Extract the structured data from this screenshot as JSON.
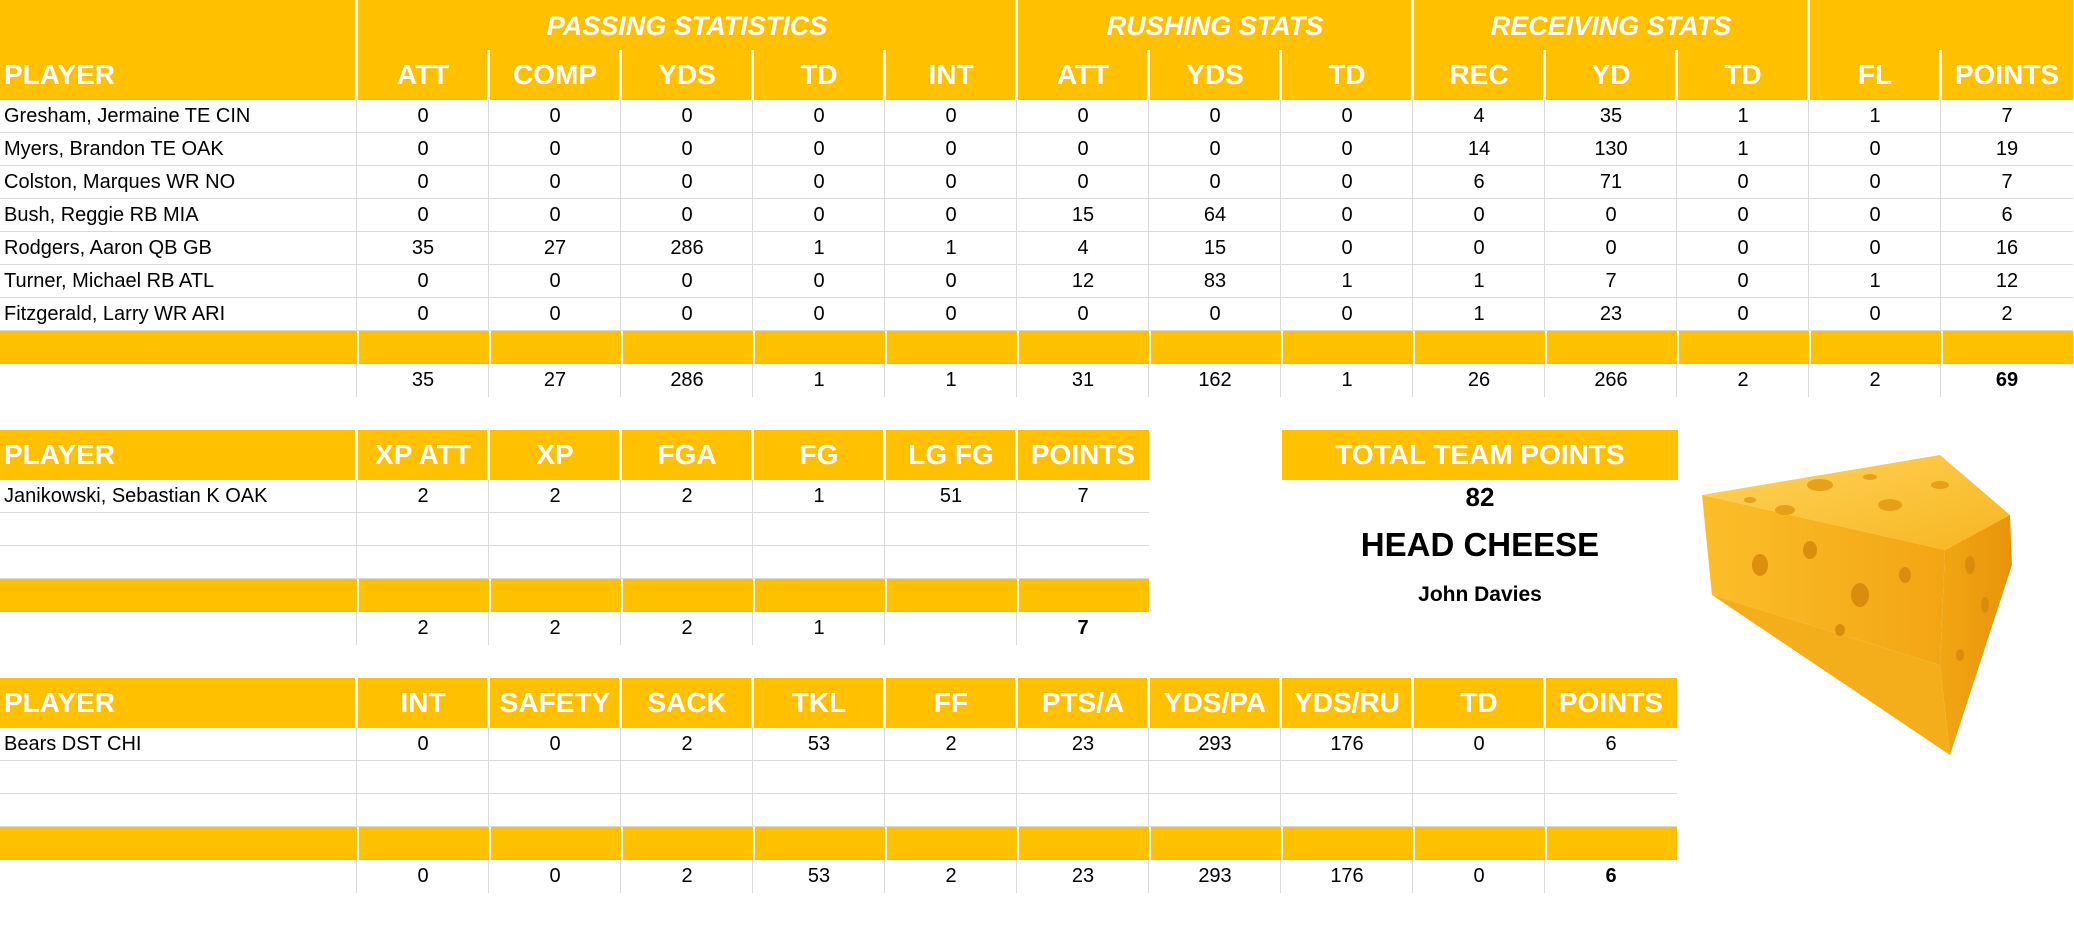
{
  "offense": {
    "groups": [
      "PASSING STATISTICS",
      "RUSHING STATS",
      "RECEIVING STATS"
    ],
    "columns": [
      "PLAYER",
      "ATT",
      "COMP",
      "YDS",
      "TD",
      "INT",
      "ATT",
      "YDS",
      "TD",
      "REC",
      "YD",
      "TD",
      "FL",
      "POINTS"
    ],
    "rows": [
      [
        "Gresham, Jermaine TE CIN",
        "0",
        "0",
        "0",
        "0",
        "0",
        "0",
        "0",
        "0",
        "4",
        "35",
        "1",
        "1",
        "7"
      ],
      [
        "Myers, Brandon TE OAK",
        "0",
        "0",
        "0",
        "0",
        "0",
        "0",
        "0",
        "0",
        "14",
        "130",
        "1",
        "0",
        "19"
      ],
      [
        "Colston, Marques WR NO",
        "0",
        "0",
        "0",
        "0",
        "0",
        "0",
        "0",
        "0",
        "6",
        "71",
        "0",
        "0",
        "7"
      ],
      [
        "Bush, Reggie RB MIA",
        "0",
        "0",
        "0",
        "0",
        "0",
        "15",
        "64",
        "0",
        "0",
        "0",
        "0",
        "0",
        "6"
      ],
      [
        "Rodgers, Aaron QB GB",
        "35",
        "27",
        "286",
        "1",
        "1",
        "4",
        "15",
        "0",
        "0",
        "0",
        "0",
        "0",
        "16"
      ],
      [
        "Turner, Michael RB ATL",
        "0",
        "0",
        "0",
        "0",
        "0",
        "12",
        "83",
        "1",
        "1",
        "7",
        "0",
        "1",
        "12"
      ],
      [
        "Fitzgerald, Larry WR ARI",
        "0",
        "0",
        "0",
        "0",
        "0",
        "0",
        "0",
        "0",
        "1",
        "23",
        "0",
        "0",
        "2"
      ]
    ],
    "totals": [
      "",
      "35",
      "27",
      "286",
      "1",
      "1",
      "31",
      "162",
      "1",
      "26",
      "266",
      "2",
      "2",
      "69"
    ]
  },
  "kicker": {
    "columns": [
      "PLAYER",
      "XP ATT",
      "XP",
      "FGA",
      "FG",
      "LG FG",
      "POINTS"
    ],
    "rows": [
      [
        "Janikowski, Sebastian K OAK",
        "2",
        "2",
        "2",
        "1",
        "51",
        "7"
      ]
    ],
    "totals": [
      "",
      "2",
      "2",
      "2",
      "1",
      "",
      "7"
    ]
  },
  "defense": {
    "columns": [
      "PLAYER",
      "INT",
      "SAFETY",
      "SACK",
      "TKL",
      "FF",
      "PTS/A",
      "YDS/PA",
      "YDS/RU",
      "TD",
      "POINTS"
    ],
    "rows": [
      [
        "Bears DST CHI",
        "0",
        "0",
        "2",
        "53",
        "2",
        "23",
        "293",
        "176",
        "0",
        "6"
      ]
    ],
    "totals": [
      "",
      "0",
      "0",
      "2",
      "53",
      "2",
      "23",
      "293",
      "176",
      "0",
      "6"
    ]
  },
  "summary": {
    "label": "TOTAL TEAM POINTS",
    "points": "82",
    "title": "HEAD CHEESE",
    "owner": "John Davies"
  },
  "colors": {
    "accent": "#FFC000",
    "header_text": "#FFFFFF"
  },
  "decor": {
    "image": "cheese-wedge-icon"
  }
}
